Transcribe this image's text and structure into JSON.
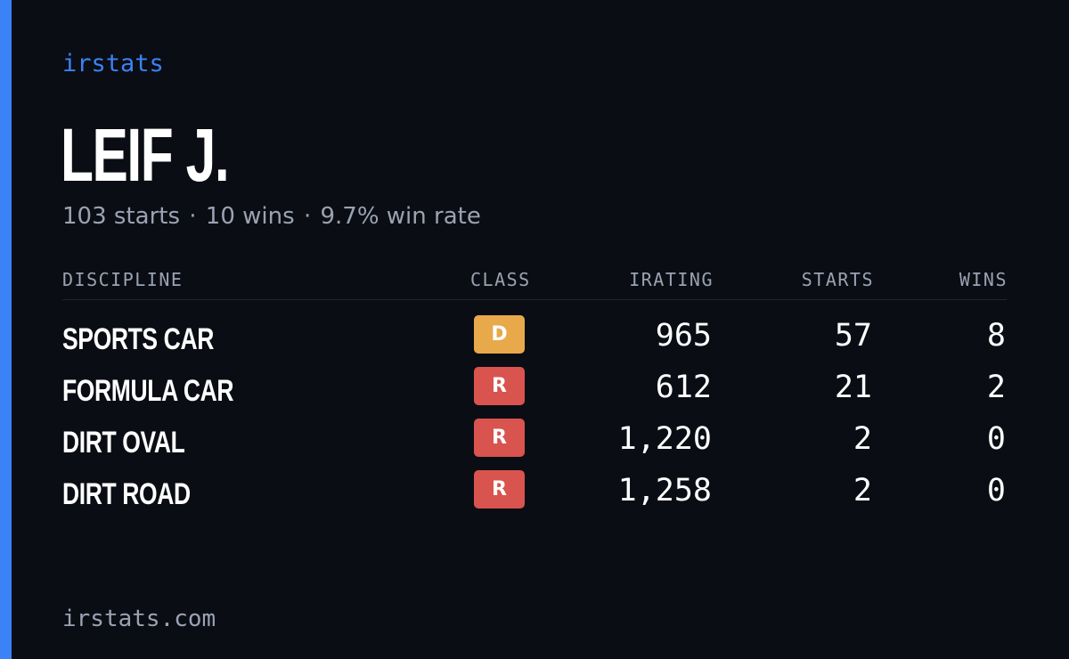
{
  "brand": "irstats",
  "driver_name": "LEIF J.",
  "summary": {
    "starts": "103 starts",
    "wins": "10 wins",
    "win_rate": "9.7% win rate",
    "separator": "·"
  },
  "table": {
    "headers": {
      "discipline": "DISCIPLINE",
      "class": "CLASS",
      "irating": "IRATING",
      "starts": "STARTS",
      "wins": "WINS"
    },
    "rows": [
      {
        "discipline": "SPORTS CAR",
        "class": "D",
        "class_color": "#e8a94a",
        "irating": "965",
        "starts": "57",
        "wins": "8"
      },
      {
        "discipline": "FORMULA CAR",
        "class": "R",
        "class_color": "#d9534f",
        "irating": "612",
        "starts": "21",
        "wins": "2"
      },
      {
        "discipline": "DIRT OVAL",
        "class": "R",
        "class_color": "#d9534f",
        "irating": "1,220",
        "starts": "2",
        "wins": "0"
      },
      {
        "discipline": "DIRT ROAD",
        "class": "R",
        "class_color": "#d9534f",
        "irating": "1,258",
        "starts": "2",
        "wins": "0"
      }
    ]
  },
  "footer": "irstats.com",
  "colors": {
    "accent": "#3b82f6",
    "background": "#0a0d14",
    "muted_text": "#9aa3b2"
  }
}
